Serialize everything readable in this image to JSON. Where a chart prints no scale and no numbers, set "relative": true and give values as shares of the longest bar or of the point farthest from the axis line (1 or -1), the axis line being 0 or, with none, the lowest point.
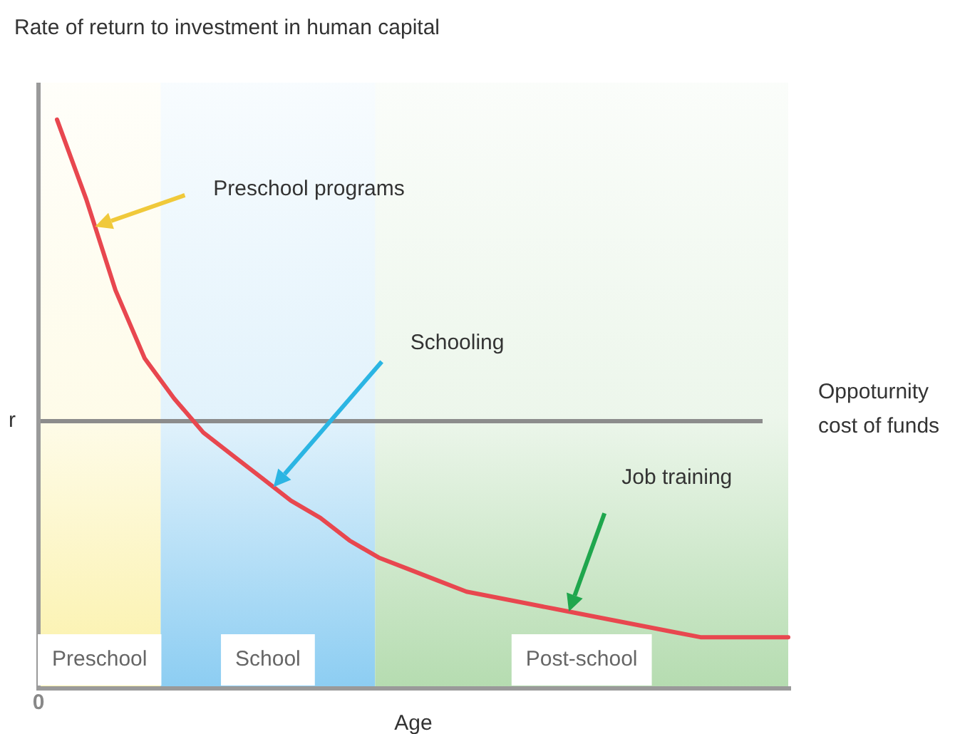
{
  "chart_data": {
    "type": "line",
    "relative": true,
    "ylabel": "Rate of return to investment in human capital",
    "xlabel": "Age",
    "categories": [
      null,
      null,
      null,
      null,
      null,
      null,
      null,
      null,
      null,
      null,
      null,
      null,
      null,
      null,
      null,
      null,
      null,
      null,
      null,
      null,
      null,
      null,
      null,
      null,
      null,
      null
    ],
    "series": [
      {
        "color": "#e8474f",
        "values": [
          1.0,
          0.86,
          0.7,
          0.58,
          0.51,
          0.45,
          0.41,
          0.37,
          0.33,
          0.3,
          0.26,
          0.23,
          0.21,
          0.19,
          0.17,
          0.16,
          0.15,
          0.14,
          0.13,
          0.12,
          0.11,
          0.1,
          0.09,
          0.09,
          0.09,
          0.09
        ]
      }
    ],
    "ref_lines": [
      {
        "axis": "y",
        "value": 0.47,
        "label": "r",
        "color": "#8c8c8c"
      }
    ],
    "annotations": [
      "Preschool programs",
      "Schooling",
      "Job training",
      "Oppoturnity cost of funds",
      "0",
      "Preschool",
      "School",
      "Post-school"
    ],
    "legend": false,
    "marker": "none",
    "line_style": "solid"
  }
}
